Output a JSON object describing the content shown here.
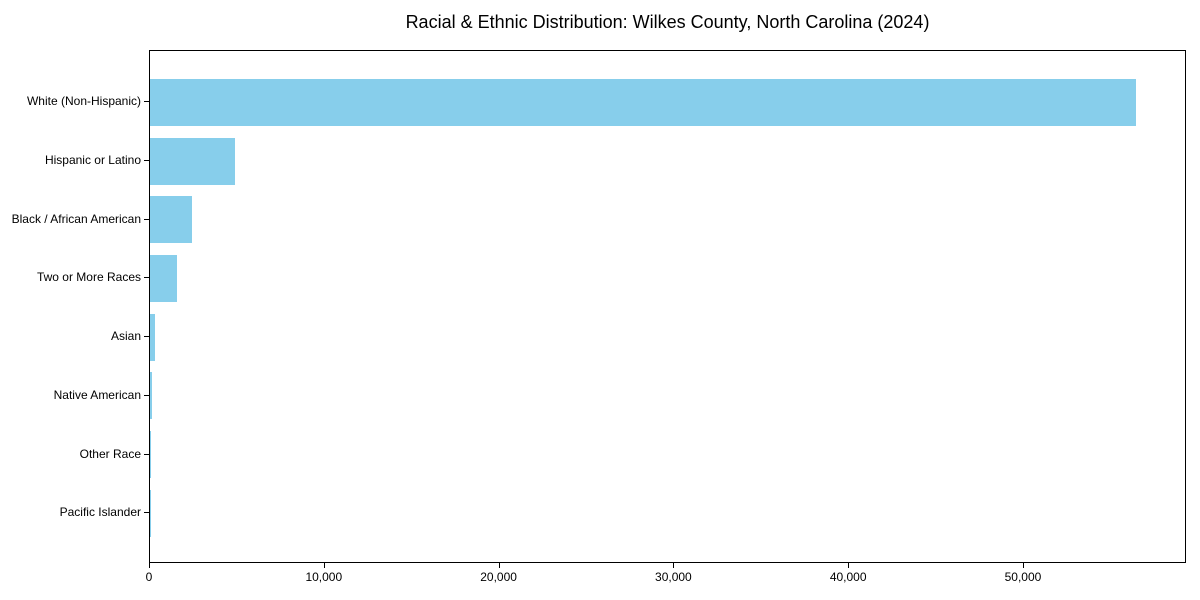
{
  "chart_data": {
    "type": "bar",
    "orientation": "horizontal",
    "title": "Racial & Ethnic Distribution: Wilkes County, North Carolina (2024)",
    "categories": [
      "White (Non-Hispanic)",
      "Hispanic or Latino",
      "Black / African American",
      "Two or More Races",
      "Asian",
      "Native American",
      "Other Race",
      "Pacific Islander"
    ],
    "values": [
      56500,
      4850,
      2380,
      1520,
      300,
      120,
      60,
      25
    ],
    "xlabel": "",
    "ylabel": "",
    "xlim": [
      0,
      59325
    ],
    "x_tick_values": [
      0,
      10000,
      20000,
      30000,
      40000,
      50000
    ],
    "x_tick_labels": [
      "0",
      "10,000",
      "20,000",
      "30,000",
      "40,000",
      "50,000"
    ],
    "bar_color": "#87CEEB",
    "axis_color": "#000000",
    "text_color": "#000000",
    "background_color": "#ffffff",
    "grid": false,
    "legend": null
  }
}
